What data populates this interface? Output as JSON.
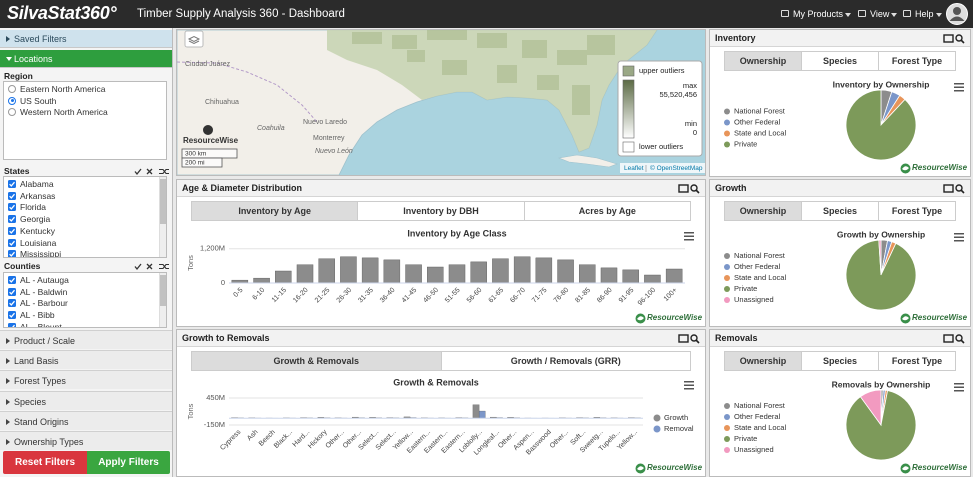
{
  "header": {
    "logo": "SilvaStat360°",
    "title": "Timber Supply Analysis 360 - Dashboard",
    "menu": [
      "My Products",
      "View",
      "Help"
    ]
  },
  "brand": "ResourceWise",
  "sidebar": {
    "saved_filters": "Saved Filters",
    "locations": "Locations",
    "region_label": "Region",
    "regions": [
      "Eastern North America",
      "US South",
      "Western North America"
    ],
    "selected_region": 1,
    "states_label": "States",
    "states": [
      "Alabama",
      "Arkansas",
      "Florida",
      "Georgia",
      "Kentucky",
      "Louisiana",
      "Mississippi"
    ],
    "counties_label": "Counties",
    "counties": [
      "AL - Autauga",
      "AL - Baldwin",
      "AL - Barbour",
      "AL - Bibb",
      "AL - Blount"
    ],
    "sections": [
      "Product / Scale",
      "Land Basis",
      "Forest Types",
      "Species",
      "Stand Origins",
      "Ownership Types"
    ],
    "reset": "Reset Filters",
    "apply": "Apply Filters"
  },
  "map": {
    "labels": [
      "Ciudad Juárez",
      "Chihuahua",
      "Coahuila",
      "Nuevo Laredo",
      "Monterrey",
      "Nuevo León"
    ],
    "legend": {
      "upper": "upper outliers",
      "max_label": "max",
      "max": {
        "value": 55520456,
        "label": "55,520,456"
      },
      "min_label": "min",
      "min": 0,
      "lower": "lower outliers"
    },
    "scale": [
      "300 km",
      "200 mi"
    ],
    "attribution": [
      "Leaflet",
      "© OpenStreetMap"
    ]
  },
  "panels": [
    {
      "title": "Age & Diameter Distribution",
      "tabs": [
        "Inventory by Age",
        "Inventory by DBH",
        "Acres by Age"
      ],
      "active_tab": 0
    },
    {
      "title": "Growth to Removals",
      "tabs": [
        "Growth & Removals",
        "Growth / Removals (GRR)"
      ],
      "active_tab": 0
    },
    {
      "title": "Inventory",
      "tabs": [
        "Ownership",
        "Species",
        "Forest Type"
      ],
      "active_tab": 0
    },
    {
      "title": "Growth",
      "tabs": [
        "Ownership",
        "Species",
        "Forest Type"
      ],
      "active_tab": 0
    },
    {
      "title": "Removals",
      "tabs": [
        "Ownership",
        "Species",
        "Forest Type"
      ],
      "active_tab": 0
    }
  ],
  "chart_data": [
    {
      "type": "bar",
      "title": "Inventory by Age Class",
      "y_label": "Tons",
      "categories": [
        "0-5",
        "6-10",
        "11-15",
        "16-20",
        "21-25",
        "26-30",
        "31-35",
        "36-40",
        "41-45",
        "46-50",
        "51-55",
        "56-60",
        "61-65",
        "66-70",
        "71-75",
        "76-80",
        "81-85",
        "86-90",
        "91-95",
        "96-100",
        "100+"
      ],
      "values": [
        100000000,
        170000000,
        420000000,
        640000000,
        850000000,
        920000000,
        880000000,
        810000000,
        640000000,
        560000000,
        640000000,
        740000000,
        850000000,
        920000000,
        880000000,
        810000000,
        640000000,
        530000000,
        460000000,
        280000000,
        490000000
      ],
      "color": "#8c8c8c",
      "ylim": [
        0,
        1400000000
      ],
      "yticks": [
        0,
        {
          "value": 1200000000,
          "label": "1,200M"
        }
      ],
      "grid": true
    },
    {
      "type": "grouped_bar",
      "title": "Growth & Removals",
      "y_label": "Tons",
      "categories": [
        "Cypress",
        "Ash",
        "Beech",
        "Black...",
        "Hard...",
        "Hickory",
        "Other...",
        "Other...",
        "Select...",
        "Select...",
        "Yellow...",
        "Eastern...",
        "Eastern...",
        "Eastern...",
        "Loblolly...",
        "Longleaf...",
        "Other...",
        "Aspen...",
        "Basswood",
        "Other...",
        "Soft...",
        "Sweetg...",
        "Tupelo...",
        "Yellow..."
      ],
      "series": [
        {
          "name": "Growth",
          "color": "#8c8c8c",
          "values": [
            15000000,
            10000000,
            5000000,
            8000000,
            15000000,
            20000000,
            10000000,
            25000000,
            20000000,
            15000000,
            30000000,
            10000000,
            8000000,
            15000000,
            300000000,
            25000000,
            20000000,
            5000000,
            5000000,
            10000000,
            15000000,
            20000000,
            10000000,
            15000000
          ]
        },
        {
          "name": "Removal",
          "color": "#7b96c9",
          "values": [
            8000000,
            5000000,
            3000000,
            5000000,
            8000000,
            10000000,
            5000000,
            12000000,
            10000000,
            8000000,
            15000000,
            5000000,
            4000000,
            8000000,
            160000000,
            15000000,
            10000000,
            3000000,
            3000000,
            5000000,
            8000000,
            10000000,
            5000000,
            8000000
          ]
        }
      ],
      "ylim": [
        -150000000,
        450000000
      ],
      "yticks": [
        {
          "value": 450000000,
          "label": "450M"
        },
        {
          "value": -150000000,
          "label": "-150M"
        }
      ],
      "grid": true,
      "legend": "right"
    },
    {
      "type": "pie",
      "title": "Inventory by Ownership",
      "categories": [
        "National Forest",
        "Other Federal",
        "State and Local",
        "Private"
      ],
      "values": [
        5,
        4,
        3,
        88
      ],
      "colors": [
        "#8c8c8c",
        "#7b96c9",
        "#e8955a",
        "#7d9a5a"
      ]
    },
    {
      "type": "pie",
      "title": "Growth by Ownership",
      "categories": [
        "National Forest",
        "Other Federal",
        "State and Local",
        "Private",
        "Unassigned"
      ],
      "values": [
        3,
        2,
        2,
        92,
        1
      ],
      "colors": [
        "#8c8c8c",
        "#7b96c9",
        "#e8955a",
        "#7d9a5a",
        "#f29ac0"
      ]
    },
    {
      "type": "pie",
      "title": "Removals by Ownership",
      "categories": [
        "National Forest",
        "Other Federal",
        "State and Local",
        "Private",
        "Unassigned"
      ],
      "values": [
        1,
        1,
        1,
        87,
        10
      ],
      "colors": [
        "#8c8c8c",
        "#7b96c9",
        "#e8955a",
        "#7d9a5a",
        "#f29ac0"
      ]
    }
  ]
}
